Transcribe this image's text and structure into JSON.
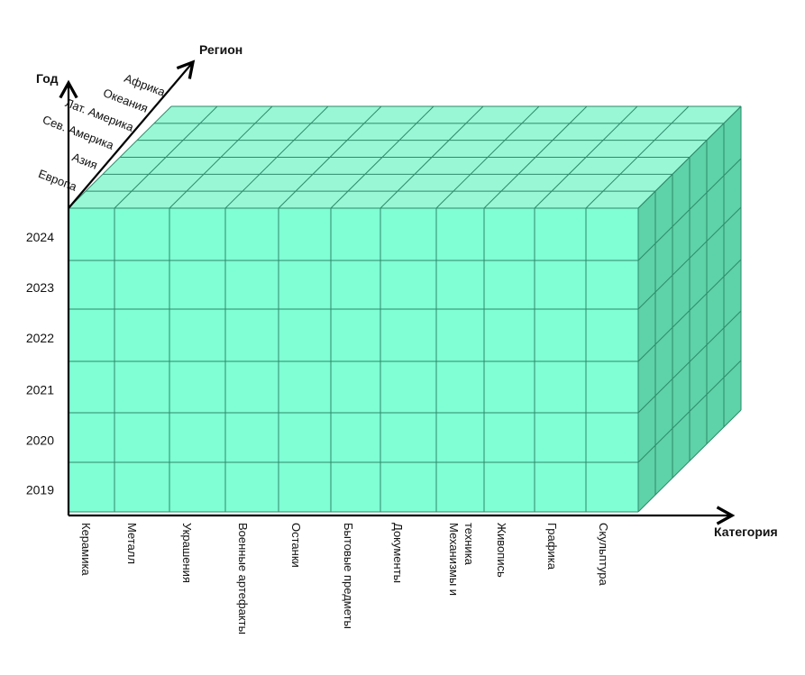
{
  "axes": {
    "year_title": "Год",
    "region_title": "Регион",
    "category_title": "Категория"
  },
  "years": [
    "2024",
    "2023",
    "2022",
    "2021",
    "2020",
    "2019"
  ],
  "regions": [
    "Европа",
    "Азия",
    "Сев. Америка",
    "Лат. Америка",
    "Океания",
    "Африка"
  ],
  "categories": [
    [
      "Керамика"
    ],
    [
      "Металл"
    ],
    [
      "Украшения"
    ],
    [
      "Военные артефакты"
    ],
    [
      "Останки"
    ],
    [
      "Бытовые предметы"
    ],
    [
      "Документы"
    ],
    [
      "Механизмы и",
      "техника"
    ],
    [
      "Живопись"
    ],
    [
      "Графика"
    ],
    [
      "Скульптура"
    ]
  ],
  "colors": {
    "front": "#80FFD4",
    "top": "#9AF7D6",
    "side": "#5ED2A8",
    "grid": "#2E8A6A",
    "axis": "#000000"
  }
}
